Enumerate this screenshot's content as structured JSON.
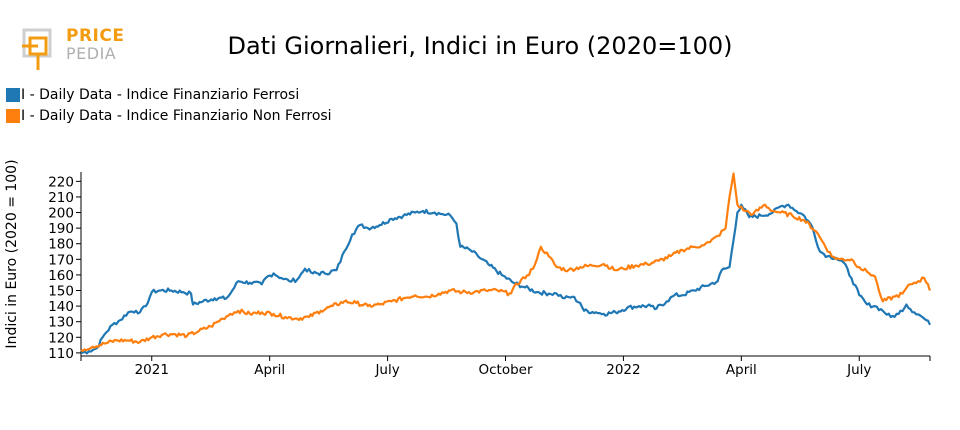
{
  "logo": {
    "line1": "PRICE",
    "line2": "PEDIA"
  },
  "colors": {
    "ferrosi": "#1f77b4",
    "non_ferrosi": "#ff7f0e",
    "logo_orange": "#f39c12",
    "logo_grey": "#b0b0b0"
  },
  "chart_data": {
    "type": "line",
    "title": "Dati Giornalieri, Indici in Euro (2020=100)",
    "xlabel": "",
    "ylabel": "Indici in Euro (2020 = 100)",
    "ylim": [
      108,
      226
    ],
    "yticks": [
      110,
      120,
      130,
      140,
      150,
      160,
      170,
      180,
      190,
      200,
      210,
      220
    ],
    "xlim": [
      -1.8,
      19.8
    ],
    "x_unit": "months since Jan 2021",
    "xticks": [
      {
        "x": 0,
        "label": "2021"
      },
      {
        "x": 3,
        "label": "April"
      },
      {
        "x": 6,
        "label": "July"
      },
      {
        "x": 9,
        "label": "October"
      },
      {
        "x": 12,
        "label": "2022"
      },
      {
        "x": 15,
        "label": "April"
      },
      {
        "x": 18,
        "label": "July"
      }
    ],
    "series": [
      {
        "name": "I - Daily Data - Indice Finanziario Ferrosi",
        "color": "#1f77b4",
        "points": [
          [
            -1.8,
            110
          ],
          [
            -1.6,
            111
          ],
          [
            -1.4,
            113
          ],
          [
            -1.2,
            122
          ],
          [
            -1.0,
            128
          ],
          [
            -0.8,
            131
          ],
          [
            -0.6,
            136
          ],
          [
            -0.4,
            137
          ],
          [
            -0.3,
            136
          ],
          [
            -0.15,
            140
          ],
          [
            0.0,
            149
          ],
          [
            0.2,
            150
          ],
          [
            0.5,
            150
          ],
          [
            0.8,
            149
          ],
          [
            1.0,
            148
          ],
          [
            1.05,
            141
          ],
          [
            1.3,
            143
          ],
          [
            1.6,
            145
          ],
          [
            1.9,
            145
          ],
          [
            2.0,
            148
          ],
          [
            2.2,
            156
          ],
          [
            2.5,
            155
          ],
          [
            2.8,
            154
          ],
          [
            2.9,
            158
          ],
          [
            3.1,
            161
          ],
          [
            3.3,
            158
          ],
          [
            3.5,
            156
          ],
          [
            3.7,
            157
          ],
          [
            3.9,
            164
          ],
          [
            4.1,
            161
          ],
          [
            4.4,
            161
          ],
          [
            4.7,
            163
          ],
          [
            4.9,
            175
          ],
          [
            5.1,
            186
          ],
          [
            5.3,
            192
          ],
          [
            5.5,
            190
          ],
          [
            5.8,
            192
          ],
          [
            6.1,
            196
          ],
          [
            6.4,
            198
          ],
          [
            6.7,
            200
          ],
          [
            6.9,
            201
          ],
          [
            7.2,
            200
          ],
          [
            7.4,
            199
          ],
          [
            7.6,
            198
          ],
          [
            7.75,
            193
          ],
          [
            7.85,
            178
          ],
          [
            8.1,
            176
          ],
          [
            8.3,
            172
          ],
          [
            8.6,
            166
          ],
          [
            8.9,
            160
          ],
          [
            9.2,
            155
          ],
          [
            9.5,
            152
          ],
          [
            9.8,
            149
          ],
          [
            10.1,
            148
          ],
          [
            10.3,
            148
          ],
          [
            10.5,
            145
          ],
          [
            10.7,
            146
          ],
          [
            10.9,
            142
          ],
          [
            11.0,
            137
          ],
          [
            11.3,
            136
          ],
          [
            11.5,
            135
          ],
          [
            11.8,
            136
          ],
          [
            12.1,
            139
          ],
          [
            12.4,
            140
          ],
          [
            12.7,
            140
          ],
          [
            12.8,
            138
          ],
          [
            13.1,
            143
          ],
          [
            13.3,
            147
          ],
          [
            13.5,
            147
          ],
          [
            13.8,
            150
          ],
          [
            14.1,
            153
          ],
          [
            14.4,
            156
          ],
          [
            14.5,
            163
          ],
          [
            14.7,
            165
          ],
          [
            14.9,
            200
          ],
          [
            15.0,
            205
          ],
          [
            15.2,
            197
          ],
          [
            15.5,
            198
          ],
          [
            15.8,
            200
          ],
          [
            16.0,
            204
          ],
          [
            16.2,
            205
          ],
          [
            16.4,
            201
          ],
          [
            16.6,
            198
          ],
          [
            16.8,
            191
          ],
          [
            17.0,
            175
          ],
          [
            17.2,
            172
          ],
          [
            17.4,
            171
          ],
          [
            17.6,
            168
          ],
          [
            17.8,
            158
          ],
          [
            18.0,
            147
          ],
          [
            18.2,
            141
          ],
          [
            18.4,
            140
          ],
          [
            18.6,
            137
          ],
          [
            18.8,
            133
          ],
          [
            19.0,
            135
          ],
          [
            19.2,
            141
          ],
          [
            19.4,
            136
          ],
          [
            19.55,
            134
          ],
          [
            19.7,
            131
          ],
          [
            19.8,
            128
          ]
        ]
      },
      {
        "name": "I - Daily Data - Indice Finanziario Non Ferrosi",
        "color": "#ff7f0e",
        "points": [
          [
            -1.8,
            112
          ],
          [
            -1.5,
            114
          ],
          [
            -1.2,
            116
          ],
          [
            -0.9,
            118
          ],
          [
            -0.6,
            118
          ],
          [
            -0.3,
            117
          ],
          [
            0.0,
            120
          ],
          [
            0.3,
            122
          ],
          [
            0.6,
            122
          ],
          [
            0.9,
            121
          ],
          [
            1.2,
            124
          ],
          [
            1.5,
            127
          ],
          [
            1.8,
            132
          ],
          [
            2.0,
            135
          ],
          [
            2.2,
            137
          ],
          [
            2.5,
            135
          ],
          [
            2.8,
            136
          ],
          [
            3.1,
            135
          ],
          [
            3.4,
            133
          ],
          [
            3.7,
            132
          ],
          [
            4.0,
            133
          ],
          [
            4.3,
            137
          ],
          [
            4.6,
            140
          ],
          [
            4.9,
            143
          ],
          [
            5.2,
            142
          ],
          [
            5.5,
            140
          ],
          [
            5.8,
            141
          ],
          [
            6.1,
            143
          ],
          [
            6.4,
            145
          ],
          [
            6.7,
            147
          ],
          [
            7.0,
            146
          ],
          [
            7.3,
            148
          ],
          [
            7.6,
            150
          ],
          [
            7.9,
            149
          ],
          [
            8.2,
            149
          ],
          [
            8.5,
            150
          ],
          [
            8.8,
            150
          ],
          [
            9.1,
            148
          ],
          [
            9.4,
            157
          ],
          [
            9.6,
            160
          ],
          [
            9.8,
            170
          ],
          [
            9.9,
            178
          ],
          [
            10.1,
            172
          ],
          [
            10.3,
            165
          ],
          [
            10.6,
            163
          ],
          [
            10.9,
            165
          ],
          [
            11.2,
            166
          ],
          [
            11.5,
            167
          ],
          [
            11.8,
            163
          ],
          [
            12.0,
            164
          ],
          [
            12.3,
            166
          ],
          [
            12.6,
            167
          ],
          [
            12.9,
            169
          ],
          [
            13.2,
            172
          ],
          [
            13.5,
            176
          ],
          [
            13.8,
            178
          ],
          [
            14.0,
            179
          ],
          [
            14.2,
            181
          ],
          [
            14.4,
            185
          ],
          [
            14.6,
            190
          ],
          [
            14.7,
            210
          ],
          [
            14.8,
            225
          ],
          [
            14.9,
            205
          ],
          [
            15.1,
            201
          ],
          [
            15.3,
            199
          ],
          [
            15.6,
            205
          ],
          [
            15.8,
            201
          ],
          [
            16.0,
            200
          ],
          [
            16.3,
            198
          ],
          [
            16.6,
            195
          ],
          [
            16.9,
            188
          ],
          [
            17.1,
            180
          ],
          [
            17.3,
            172
          ],
          [
            17.5,
            170
          ],
          [
            17.8,
            170
          ],
          [
            18.0,
            165
          ],
          [
            18.2,
            162
          ],
          [
            18.4,
            159
          ],
          [
            18.5,
            150
          ],
          [
            18.6,
            143
          ],
          [
            18.9,
            146
          ],
          [
            19.1,
            148
          ],
          [
            19.3,
            154
          ],
          [
            19.5,
            156
          ],
          [
            19.65,
            158
          ],
          [
            19.75,
            154
          ],
          [
            19.8,
            150
          ]
        ]
      }
    ],
    "legend": "top-left"
  }
}
